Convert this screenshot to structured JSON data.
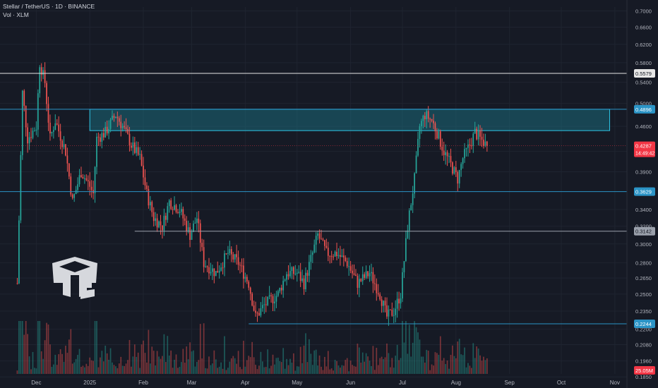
{
  "header": {
    "symbol_line": "Stellar / TetherUS · 1D · BINANCE",
    "volume_line": "Vol · XLM"
  },
  "colors": {
    "background": "#161a25",
    "grid": "#1f2430",
    "up": "#26a69a",
    "down": "#ef5350",
    "zone_fill": "#1b6a7a",
    "zone_border": "#2ec6e6",
    "support_line": "#2b94c6",
    "white_line": "#e6e6e6",
    "gray_line": "#9aa0ab",
    "current_price": "#f23645"
  },
  "chart_data": {
    "type": "candlestick",
    "title": "Stellar / TetherUS · 1D · BINANCE",
    "y_scale": "log",
    "y_range": [
      0.187,
      0.71
    ],
    "y_ticks": [
      "0.7000",
      "0.6600",
      "0.6200",
      "0.5800",
      "0.5400",
      "0.5000",
      "0.4600",
      "0.4200",
      "0.3900",
      "0.3400",
      "0.3200",
      "0.3000",
      "0.2800",
      "0.2650",
      "0.2500",
      "0.2350",
      "0.2200",
      "0.2080",
      "0.1960",
      "0.1850"
    ],
    "x_labels": [
      {
        "label": "Dec",
        "date": "2024-12-01"
      },
      {
        "label": "2025",
        "date": "2025-01-01"
      },
      {
        "label": "Feb",
        "date": "2025-02-01"
      },
      {
        "label": "Mar",
        "date": "2025-03-01"
      },
      {
        "label": "Apr",
        "date": "2025-04-01"
      },
      {
        "label": "May",
        "date": "2025-05-01"
      },
      {
        "label": "Jun",
        "date": "2025-06-01"
      },
      {
        "label": "Jul",
        "date": "2025-07-01"
      },
      {
        "label": "Aug",
        "date": "2025-08-01"
      },
      {
        "label": "Sep",
        "date": "2025-09-01"
      },
      {
        "label": "Oct",
        "date": "2025-10-01"
      },
      {
        "label": "Nov",
        "date": "2025-11-01"
      }
    ],
    "date_range": [
      "2024-11-10",
      "2025-11-08"
    ],
    "price_path": [
      [
        "2024-11-20",
        0.26
      ],
      [
        "2024-11-23",
        0.52
      ],
      [
        "2024-11-26",
        0.44
      ],
      [
        "2024-12-01",
        0.46
      ],
      [
        "2024-12-03",
        0.58
      ],
      [
        "2024-12-06",
        0.54
      ],
      [
        "2024-12-09",
        0.44
      ],
      [
        "2024-12-12",
        0.47
      ],
      [
        "2024-12-18",
        0.42
      ],
      [
        "2024-12-22",
        0.35
      ],
      [
        "2024-12-27",
        0.39
      ],
      [
        "2025-01-01",
        0.37
      ],
      [
        "2025-01-03",
        0.36
      ],
      [
        "2025-01-05",
        0.44
      ],
      [
        "2025-01-10",
        0.45
      ],
      [
        "2025-01-16",
        0.48
      ],
      [
        "2025-01-20",
        0.46
      ],
      [
        "2025-01-25",
        0.43
      ],
      [
        "2025-01-30",
        0.41
      ],
      [
        "2025-02-03",
        0.36
      ],
      [
        "2025-02-07",
        0.33
      ],
      [
        "2025-02-12",
        0.32
      ],
      [
        "2025-02-16",
        0.35
      ],
      [
        "2025-02-22",
        0.34
      ],
      [
        "2025-02-28",
        0.31
      ],
      [
        "2025-03-04",
        0.33
      ],
      [
        "2025-03-08",
        0.28
      ],
      [
        "2025-03-15",
        0.27
      ],
      [
        "2025-03-22",
        0.29
      ],
      [
        "2025-03-28",
        0.28
      ],
      [
        "2025-04-03",
        0.26
      ],
      [
        "2025-04-07",
        0.23
      ],
      [
        "2025-04-12",
        0.24
      ],
      [
        "2025-04-20",
        0.25
      ],
      [
        "2025-04-25",
        0.27
      ],
      [
        "2025-05-01",
        0.27
      ],
      [
        "2025-05-05",
        0.26
      ],
      [
        "2025-05-10",
        0.29
      ],
      [
        "2025-05-13",
        0.31
      ],
      [
        "2025-05-18",
        0.29
      ],
      [
        "2025-05-24",
        0.29
      ],
      [
        "2025-05-30",
        0.28
      ],
      [
        "2025-06-05",
        0.26
      ],
      [
        "2025-06-12",
        0.27
      ],
      [
        "2025-06-18",
        0.25
      ],
      [
        "2025-06-22",
        0.23
      ],
      [
        "2025-06-26",
        0.235
      ],
      [
        "2025-06-30",
        0.25
      ],
      [
        "2025-07-04",
        0.32
      ],
      [
        "2025-07-08",
        0.38
      ],
      [
        "2025-07-11",
        0.46
      ],
      [
        "2025-07-14",
        0.48
      ],
      [
        "2025-07-18",
        0.47
      ],
      [
        "2025-07-21",
        0.45
      ],
      [
        "2025-07-25",
        0.42
      ],
      [
        "2025-07-29",
        0.4
      ],
      [
        "2025-08-02",
        0.38
      ],
      [
        "2025-08-05",
        0.41
      ],
      [
        "2025-08-09",
        0.43
      ],
      [
        "2025-08-12",
        0.45
      ],
      [
        "2025-08-15",
        0.44
      ],
      [
        "2025-08-19",
        0.4287
      ]
    ],
    "levels": [
      {
        "name": "resistance-high",
        "value": 0.5579,
        "label": "0.5579",
        "style": "white",
        "from_date": "2024-11-10"
      },
      {
        "name": "resistance-zone-top",
        "value": 0.4896,
        "label": "0.4896",
        "style": "support",
        "from_date": "2024-11-10"
      },
      {
        "name": "support-upper",
        "value": 0.3629,
        "label": "0.3629",
        "style": "support",
        "from_date": "2024-11-10"
      },
      {
        "name": "support-mid",
        "value": 0.3142,
        "label": "0.3142",
        "style": "gray",
        "from_date": "2025-01-27"
      },
      {
        "name": "support-low",
        "value": 0.2244,
        "label": "0.2244",
        "style": "support",
        "from_date": "2025-04-03"
      }
    ],
    "zone": {
      "top": 0.4896,
      "bottom": 0.453,
      "from_date": "2025-01-01",
      "to_date": "2025-10-29"
    },
    "current_price": {
      "value": 0.4287,
      "label": "0.4287",
      "countdown": "14:49:42"
    },
    "volume": {
      "last_label": "25.05M"
    }
  }
}
